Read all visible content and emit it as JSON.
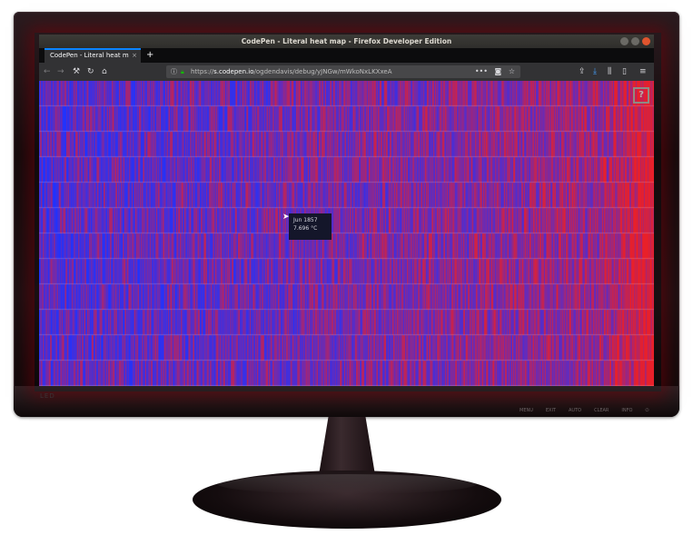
{
  "window": {
    "title": "CodePen - Literal heat map - Firefox Developer Edition"
  },
  "tabs": [
    {
      "label": "CodePen - Literal heat m",
      "close": "×"
    }
  ],
  "new_tab_label": "+",
  "nav": {
    "back_icon": "arrow-left-icon",
    "forward_icon": "arrow-right-icon",
    "tools_icon": "wrench-icon",
    "reload_icon": "reload-icon",
    "home_icon": "home-icon"
  },
  "url": {
    "protocol": "https://",
    "domain": "s.codepen.io",
    "path": "/ogdendavis/debug/yJNGw/mWkoNxLKXxeA"
  },
  "heatmap": {
    "colors": {
      "cold": "#1e33ff",
      "mid": "#6a2bb5",
      "hot": "#e8202a"
    }
  },
  "tooltip": {
    "date": "Jun 1857",
    "value": "7.696 °C"
  },
  "help_label": "?",
  "monitor": {
    "buttons": [
      "MENU",
      "EXIT",
      "AUTO",
      "CLEAR",
      "INFO",
      "⏻"
    ],
    "brand": "LED"
  }
}
